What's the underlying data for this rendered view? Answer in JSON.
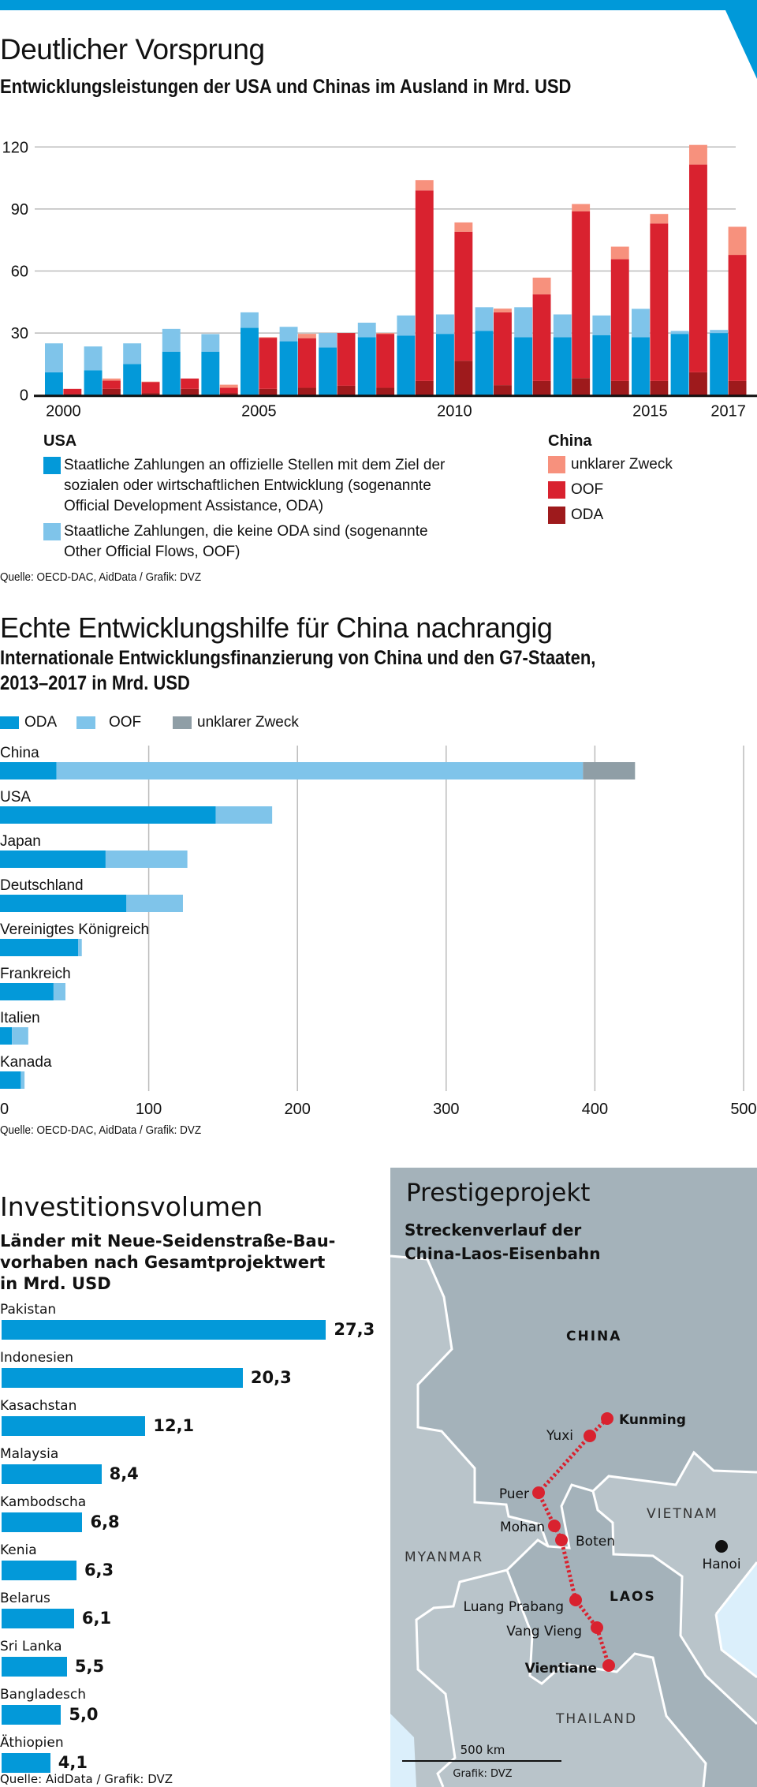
{
  "colors": {
    "brand": "#0099d9",
    "usa_oda": "#0399d9",
    "usa_oof": "#7fc4ea",
    "china_unclear": "#f7917d",
    "china_oof": "#d9222f",
    "china_oda": "#9e1a1c",
    "unclear_grey": "#8f9ea6",
    "map_dark": "#a4b2ba",
    "map_light": "#b9c4ca",
    "map_sea": "#dbeffb",
    "route": "#d9222f"
  },
  "section1": {
    "title": "Deutlicher Vorsprung",
    "subtitle": "Entwicklungsleistungen der USA und Chinas im Ausland in Mrd. USD",
    "legend": {
      "usa_heading": "USA",
      "usa_oda_lines": [
        "Staatliche Zahlungen an offizielle Stellen mit dem Ziel der",
        "sozialen oder wirtschaftlichen Entwicklung (sogenannte",
        "Official Development Assistance, ODA)"
      ],
      "usa_oof_lines": [
        "Staatliche Zahlungen, die keine ODA sind (sogenannte",
        "Other Official Flows, OOF)"
      ],
      "china_heading": "China",
      "china_items": [
        "unklarer Zweck",
        "OOF",
        "ODA"
      ]
    },
    "source": "Quelle: OECD-DAC, AidData / Grafik: DVZ"
  },
  "section2": {
    "title": "Echte Entwicklungshilfe für China nachrangig",
    "subtitle_lines": [
      "Internationale Entwicklungsfinanzierung von China und den G7-Staaten,",
      "2013–2017 in Mrd. USD"
    ],
    "legend": [
      "ODA",
      "OOF",
      "unklarer Zweck"
    ],
    "source": "Quelle: OECD-DAC, AidData / Grafik: DVZ"
  },
  "section3": {
    "title": "Investitionsvolumen",
    "subtitle_lines": [
      "Länder mit Neue-Seidenstraße-Bau-",
      "vorhaben nach Gesamtprojektwert",
      "in Mrd. USD"
    ],
    "source": "Quelle: AidData / Grafik: DVZ"
  },
  "map": {
    "title": "Prestigeprojekt",
    "subtitle_lines": [
      "Streckenverlauf der",
      "China-Laos-Eisenbahn"
    ],
    "countries": {
      "china": "CHINA",
      "myanmar": "MYANMAR",
      "vietnam": "VIETNAM",
      "laos": "LAOS",
      "thailand": "THAILAND"
    },
    "stations": [
      "Kunming",
      "Yuxi",
      "Puer",
      "Mohan",
      "Boten",
      "Luang Prabang",
      "Vang Vieng",
      "Vientiane"
    ],
    "city": "Hanoi",
    "scale": "500 km",
    "credit": "Grafik: DVZ"
  },
  "chart_data": [
    {
      "type": "bar",
      "stacked": true,
      "title": "Entwicklungsleistungen der USA und Chinas im Ausland in Mrd. USD",
      "x": [
        2000,
        2001,
        2002,
        2003,
        2004,
        2005,
        2006,
        2007,
        2008,
        2009,
        2010,
        2011,
        2012,
        2013,
        2014,
        2015,
        2016,
        2017
      ],
      "x_tick_labels": [
        "2000",
        "2005",
        "2010",
        "2015",
        "2017"
      ],
      "y_ticks": [
        "0",
        "30",
        "60",
        "90",
        "120"
      ],
      "ylim": [
        0,
        120
      ],
      "grid": true,
      "series": [
        {
          "name": "USA ODA",
          "group": "USA",
          "values": [
            11,
            12,
            15,
            21,
            21,
            32.5,
            26,
            23,
            28,
            28.7,
            29.6,
            31,
            28,
            28,
            29,
            28,
            29.6,
            30
          ]
        },
        {
          "name": "USA OOF",
          "group": "USA",
          "values": [
            14,
            11.5,
            10,
            11,
            8.5,
            7.5,
            7,
            7,
            7,
            9.8,
            9.4,
            11.5,
            14.5,
            11,
            9.5,
            13.7,
            1.4,
            1.5
          ]
        },
        {
          "name": "China ODA",
          "group": "China",
          "values": [
            0.5,
            3,
            1,
            3,
            1,
            3,
            3.5,
            4.5,
            3.5,
            6.8,
            16.6,
            4.8,
            6.8,
            8.2,
            6.8,
            6.8,
            11,
            6.8
          ]
        },
        {
          "name": "China OOF",
          "group": "China",
          "values": [
            2.5,
            4,
            5.3,
            5,
            2.5,
            24.7,
            24,
            25.5,
            26.1,
            92.2,
            62.4,
            35.2,
            41.9,
            80.7,
            58.9,
            76.2,
            100.5,
            61
          ]
        },
        {
          "name": "China unklarer Zweck",
          "group": "China",
          "values": [
            0,
            1,
            0.2,
            0,
            1.5,
            0.3,
            2.1,
            0,
            0.4,
            5,
            4.5,
            1.8,
            8.1,
            3.5,
            6.1,
            4.6,
            9.5,
            13.6
          ]
        }
      ]
    },
    {
      "type": "bar",
      "orientation": "horizontal",
      "stacked": true,
      "title": "Internationale Entwicklungsfinanzierung von China und den G7-Staaten, 2013–2017 in Mrd. USD",
      "categories": [
        "China",
        "USA",
        "Japan",
        "Deutschland",
        "Vereinigtes Königreich",
        "Frankreich",
        "Italien",
        "Kanada"
      ],
      "x_ticks": [
        "0",
        "100",
        "200",
        "300",
        "400",
        "500"
      ],
      "xlim": [
        0,
        500
      ],
      "grid": true,
      "series": [
        {
          "name": "ODA",
          "values": [
            38,
            145,
            71,
            85,
            52.5,
            36,
            8,
            14
          ]
        },
        {
          "name": "OOF",
          "values": [
            354,
            38,
            55,
            38,
            2.5,
            8,
            11,
            2.5
          ]
        },
        {
          "name": "unklarer Zweck",
          "values": [
            35,
            0,
            0,
            0,
            0,
            0,
            0,
            0
          ]
        }
      ]
    },
    {
      "type": "bar",
      "orientation": "horizontal",
      "title": "Länder mit Neue-Seidenstraße-Bauvorhaben nach Gesamtprojektwert in Mrd. USD",
      "categories": [
        "Pakistan",
        "Indonesien",
        "Kasachstan",
        "Malaysia",
        "Kambodscha",
        "Kenia",
        "Belarus",
        "Sri Lanka",
        "Bangladesch",
        "Äthiopien"
      ],
      "values": [
        27.3,
        20.3,
        12.1,
        8.4,
        6.8,
        6.3,
        6.1,
        5.5,
        5.0,
        4.1
      ],
      "value_labels": [
        "27,3",
        "20,3",
        "12,1",
        "8,4",
        "6,8",
        "6,3",
        "6,1",
        "5,5",
        "5,0",
        "4,1"
      ]
    }
  ]
}
